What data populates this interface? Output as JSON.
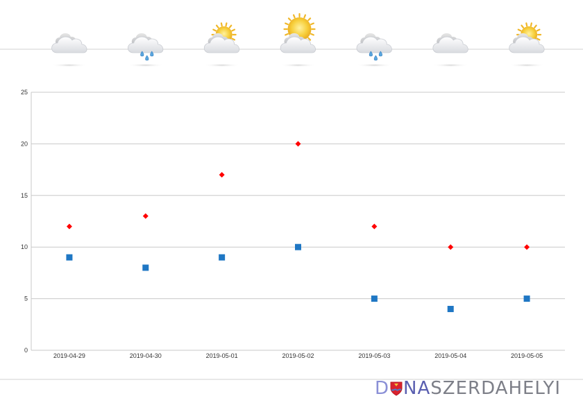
{
  "weather_icons": [
    "cloud",
    "cloud-rain",
    "sun-cloud",
    "sun-cloud-strong",
    "cloud-rain",
    "cloud",
    "sun-cloud"
  ],
  "logo": {
    "part1": "D",
    "part2": "NA",
    "part3": "SZERDAHELYI"
  },
  "colors": {
    "max_series": "#ff0000",
    "min_series": "#1f77c4",
    "grid": "#c8c8c8",
    "divider": "#d0d0d0"
  },
  "chart_data": {
    "type": "scatter",
    "categories": [
      "2019-04-29",
      "2019-04-30",
      "2019-05-01",
      "2019-05-02",
      "2019-05-03",
      "2019-05-04",
      "2019-05-05"
    ],
    "series": [
      {
        "marker": "diamond",
        "color": "#ff0000",
        "values": [
          12,
          13,
          17,
          20,
          12,
          10,
          10
        ]
      },
      {
        "marker": "square",
        "color": "#1f77c4",
        "values": [
          9,
          8,
          9,
          10,
          5,
          4,
          5
        ]
      }
    ],
    "ylim": [
      0,
      25
    ],
    "yticks": [
      0,
      5,
      10,
      15,
      20,
      25
    ],
    "title": "",
    "xlabel": "",
    "ylabel": "",
    "grid": true,
    "legend": "none"
  }
}
